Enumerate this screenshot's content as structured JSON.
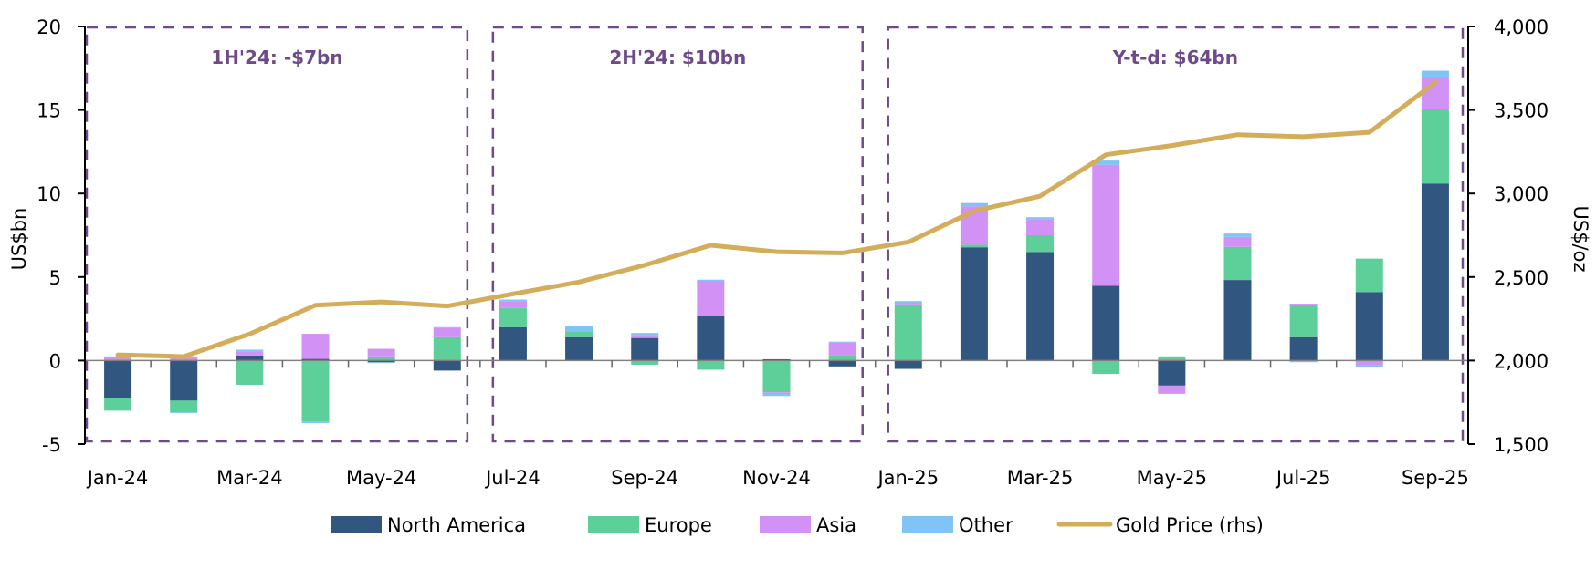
{
  "chart_data": {
    "type": "bar",
    "stacked": true,
    "categories": [
      "Jan-24",
      "Feb-24",
      "Mar-24",
      "Apr-24",
      "May-24",
      "Jun-24",
      "Jul-24",
      "Aug-24",
      "Sep-24",
      "Oct-24",
      "Nov-24",
      "Dec-24",
      "Jan-25",
      "Feb-25",
      "Mar-25",
      "Apr-25",
      "May-25",
      "Jun-25",
      "Jul-25",
      "Aug-25",
      "Sep-25"
    ],
    "x_tick_labels": [
      "Jan-24",
      "Mar-24",
      "May-24",
      "Jul-24",
      "Sep-24",
      "Nov-24",
      "Jan-25",
      "Mar-25",
      "May-25",
      "Jul-25",
      "Sep-25"
    ],
    "ylabel": "US$bn",
    "ylim": [
      -5,
      20
    ],
    "y_ticks": [
      -5,
      0,
      5,
      10,
      15,
      20
    ],
    "y_tick_labels": [
      "-5",
      "0",
      "5",
      "10",
      "15",
      "20"
    ],
    "y2label": "US$/oz",
    "y2lim": [
      1500,
      4000
    ],
    "y2_ticks": [
      1500,
      2000,
      2500,
      3000,
      3500,
      4000
    ],
    "y2_tick_labels": [
      "1,500",
      "2,000",
      "2,500",
      "3,000",
      "3,500",
      "4,000"
    ],
    "grid": false,
    "legend_position": "bottom",
    "series": [
      {
        "name": "North America",
        "type": "bar",
        "color": "#31567f",
        "values": [
          -2.25,
          -2.4,
          0.3,
          0.1,
          -0.1,
          -0.6,
          2.0,
          1.4,
          1.35,
          2.67,
          0.08,
          -0.35,
          -0.5,
          6.78,
          6.5,
          4.47,
          -1.5,
          4.82,
          1.4,
          4.1,
          10.6
        ]
      },
      {
        "name": "Europe",
        "type": "bar",
        "color": "#5dd09a",
        "values": [
          -0.75,
          -0.7,
          -1.45,
          -3.65,
          0.25,
          1.4,
          1.15,
          0.36,
          -0.25,
          -0.55,
          -1.9,
          0.33,
          3.36,
          0.15,
          1.0,
          -0.8,
          0.25,
          1.98,
          1.9,
          2.0,
          4.45
        ]
      },
      {
        "name": "Asia",
        "type": "bar",
        "color": "#d291f5",
        "values": [
          0.2,
          0.25,
          0.25,
          1.5,
          0.45,
          0.55,
          0.4,
          0.0,
          0.15,
          2.1,
          -0.1,
          0.75,
          0.1,
          2.3,
          0.95,
          7.25,
          -0.45,
          0.6,
          0.1,
          -0.3,
          1.95
        ]
      },
      {
        "name": "Other",
        "type": "bar",
        "color": "#7fc4f5",
        "values": [
          0.05,
          -0.05,
          0.1,
          -0.1,
          -0.05,
          0.05,
          0.1,
          0.33,
          0.15,
          0.07,
          -0.12,
          0.05,
          0.1,
          0.2,
          0.13,
          0.25,
          -0.05,
          0.2,
          -0.1,
          -0.1,
          0.35
        ]
      },
      {
        "name": "Gold Price (rhs)",
        "type": "line",
        "axis": "right",
        "color": "#d4ad5a",
        "values": [
          2034,
          2024,
          2159,
          2331,
          2351,
          2326,
          2399,
          2470,
          2571,
          2690,
          2651,
          2644,
          2709,
          2895,
          2984,
          3232,
          3287,
          3352,
          3340,
          3366,
          3665
        ]
      }
    ],
    "annotations": [
      {
        "text": "1H'24: -$7bn",
        "from": "Jan-24",
        "to": "Jun-24"
      },
      {
        "text": "2H'24: $10bn",
        "from": "Jul-24",
        "to": "Dec-24"
      },
      {
        "text": "Y-t-d: $64bn",
        "from": "Jan-25",
        "to": "Sep-25"
      }
    ],
    "annotation_color": "#6e4a8a"
  }
}
